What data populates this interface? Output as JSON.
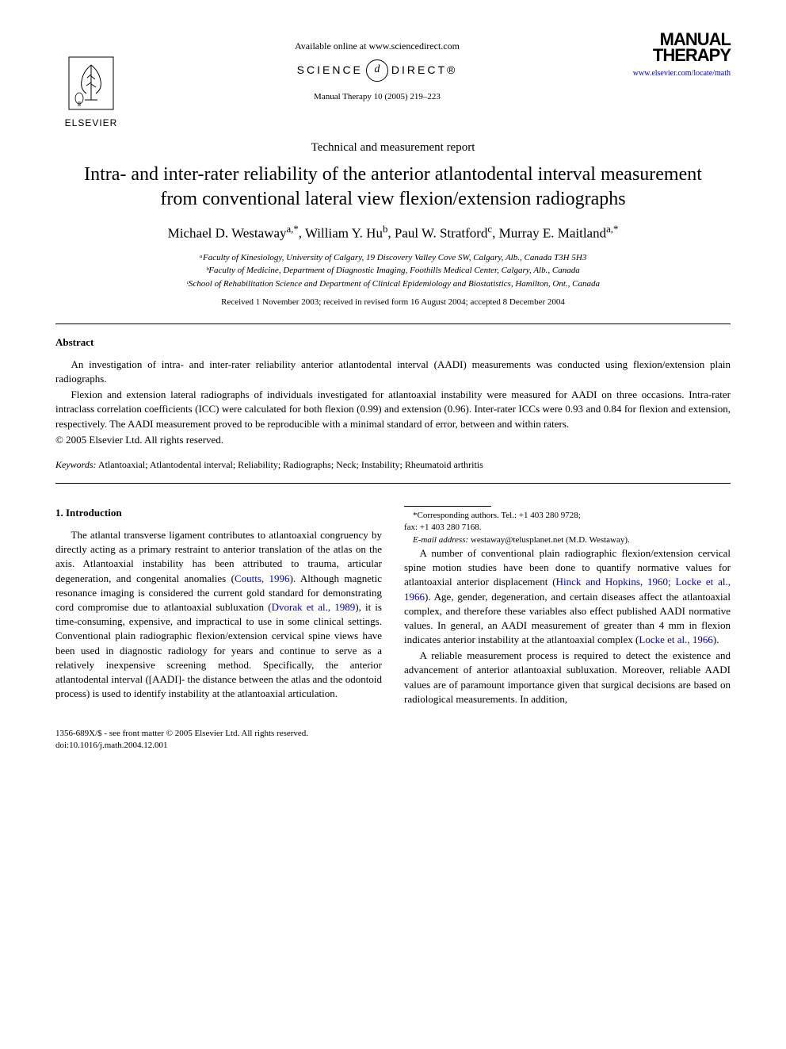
{
  "colors": {
    "text": "#000000",
    "background": "#ffffff",
    "link": "#0000cc"
  },
  "typography": {
    "body_font": "Georgia, Times New Roman, serif",
    "body_size_pt": 10,
    "title_size_pt": 18,
    "author_size_pt": 13,
    "small_size_pt": 8
  },
  "header": {
    "publisher_name": "ELSEVIER",
    "available_text": "Available online at www.sciencedirect.com",
    "sciencedirect_left": "SCIENCE",
    "sciencedirect_center": "d",
    "sciencedirect_right": "DIRECT®",
    "citation": "Manual Therapy 10 (2005) 219–223",
    "journal_logo_line1": "Manual",
    "journal_logo_line2": "Therapy",
    "journal_link": "www.elsevier.com/locate/math"
  },
  "article": {
    "type": "Technical and measurement report",
    "title": "Intra- and inter-rater reliability of the anterior atlantodental interval measurement from conventional lateral view flexion/extension radiographs",
    "authors_html": "Michael D. Westaway<sup>a,*</sup>, William Y. Hu<sup>b</sup>, Paul W. Stratford<sup>c</sup>, Murray E. Maitland<sup>a,*</sup>",
    "affiliations": [
      "ᵃFaculty of Kinesiology, University of Calgary, 19 Discovery Valley Cove SW, Calgary, Alb., Canada T3H 5H3",
      "ᵇFaculty of Medicine, Department of Diagnostic Imaging, Foothills Medical Center, Calgary, Alb., Canada",
      "ᶜSchool of Rehabilitation Science and Department of Clinical Epidemiology and Biostatistics, Hamilton, Ont., Canada"
    ],
    "dates": "Received 1 November 2003; received in revised form 16 August 2004; accepted 8 December 2004"
  },
  "abstract": {
    "heading": "Abstract",
    "paragraphs": [
      "An investigation of intra- and inter-rater reliability anterior atlantodental interval (AADI) measurements was conducted using flexion/extension plain radiographs.",
      "Flexion and extension lateral radiographs of individuals investigated for atlantoaxial instability were measured for AADI on three occasions. Intra-rater intraclass correlation coefficients (ICC) were calculated for both flexion (0.99) and extension (0.96). Inter-rater ICCs were 0.93 and 0.84 for flexion and extension, respectively. The AADI measurement proved to be reproducible with a minimal standard of error, between and within raters."
    ],
    "copyright": "© 2005 Elsevier Ltd. All rights reserved."
  },
  "keywords": {
    "label": "Keywords:",
    "text": " Atlantoaxial; Atlantodental interval; Reliability; Radiographs; Neck; Instability; Rheumatoid arthritis"
  },
  "body": {
    "section_number": "1.",
    "section_title": " Introduction",
    "p1a": "The atlantal transverse ligament contributes to atlantoaxial congruency by directly acting as a primary restraint to anterior translation of the atlas on the axis. Atlantoaxial instability has been attributed to trauma, articular degeneration, and congenital anomalies (",
    "p1_cite1": "Coutts, 1996",
    "p1b": "). Although magnetic resonance imaging is considered the current gold standard for demonstrating cord compromise due to atlantoaxial subluxation (",
    "p1_cite2": "Dvorak et al., 1989",
    "p1c": "), it is time-consuming, expensive, and impractical to use in some clinical settings. Conventional plain radiographic flexion/extension cervical spine views have been used in diagnostic radiology for years and continue to serve as a relatively inexpensive screening method. Specifically, the anterior atlantodental interval ([AADI]- the distance between the atlas and the odontoid process) is used to identify instability at the atlantoaxial articulation.",
    "p2a": "A number of conventional plain radiographic flexion/extension cervical spine motion studies have been done to quantify normative values for atlantoaxial anterior displacement (",
    "p2_cite1": "Hinck and Hopkins, 1960; Locke et al., 1966",
    "p2b": "). Age, gender, degeneration, and certain diseases affect the atlantoaxial complex, and therefore these variables also effect published AADI normative values. In general, an AADI measurement of greater than 4 mm in flexion indicates anterior instability at the atlantoaxial complex (",
    "p2_cite2": "Locke et al., 1966",
    "p2c": ").",
    "p3": "A reliable measurement process is required to detect the existence and advancement of anterior atlantoaxial subluxation. Moreover, reliable AADI values are of paramount importance given that surgical decisions are based on radiological measurements. In addition,"
  },
  "footnotes": {
    "corresponding": "*Corresponding authors. Tel.: +1 403 280 9728;",
    "fax": "fax: +1 403 280 7168.",
    "email_label": "E-mail address:",
    "email": " westaway@telusplanet.net (M.D. Westaway)."
  },
  "footer": {
    "issn": "1356-689X/$ - see front matter © 2005 Elsevier Ltd. All rights reserved.",
    "doi": "doi:10.1016/j.math.2004.12.001"
  }
}
